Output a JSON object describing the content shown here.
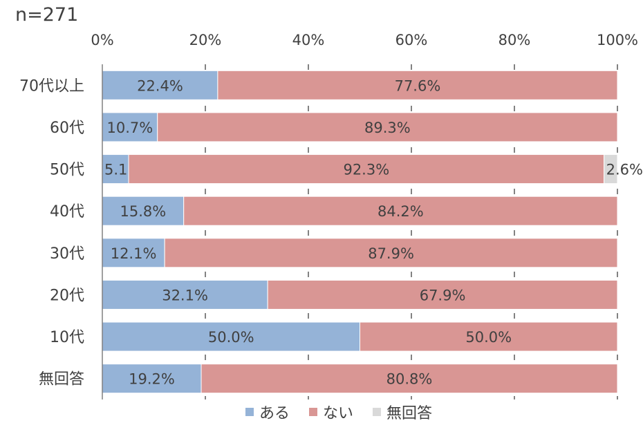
{
  "note": "n=271",
  "chart_data": {
    "type": "bar",
    "orientation": "horizontal",
    "stacked": true,
    "categories": [
      "70代以上",
      "60代",
      "50代",
      "40代",
      "30代",
      "20代",
      "10代",
      "無回答"
    ],
    "series": [
      {
        "name": "ある",
        "color": "#95b3d7",
        "values": [
          22.4,
          10.7,
          5.1,
          15.8,
          12.1,
          32.1,
          50.0,
          19.2
        ]
      },
      {
        "name": "ない",
        "color": "#d99694",
        "values": [
          77.6,
          89.3,
          92.3,
          84.2,
          87.9,
          67.9,
          50.0,
          80.8
        ]
      },
      {
        "name": "無回答",
        "color": "#d9d9d9",
        "values": [
          0,
          0,
          2.6,
          0,
          0,
          0,
          0,
          0
        ]
      }
    ],
    "data_labels": [
      [
        "22.4%",
        "77.6%",
        ""
      ],
      [
        "10.7%",
        "89.3%",
        ""
      ],
      [
        "5.1%",
        "92.3%",
        "2.6%"
      ],
      [
        "15.8%",
        "84.2%",
        ""
      ],
      [
        "12.1%",
        "87.9%",
        ""
      ],
      [
        "32.1%",
        "67.9%",
        ""
      ],
      [
        "50.0%",
        "50.0%",
        ""
      ],
      [
        "19.2%",
        "80.8%",
        ""
      ]
    ],
    "xticks": [
      "0%",
      "20%",
      "40%",
      "60%",
      "80%",
      "100%"
    ],
    "xlim": [
      0,
      100
    ],
    "grid": true,
    "legend_position": "bottom"
  }
}
